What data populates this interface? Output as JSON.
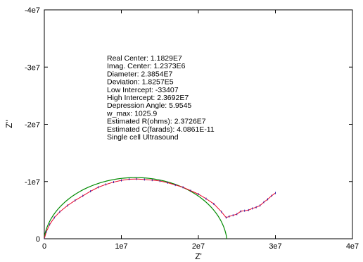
{
  "chart_data": {
    "type": "scatter",
    "title": "",
    "xlabel": "Z'",
    "ylabel": "Z''",
    "xlim": [
      0,
      40000000
    ],
    "ylim": [
      0,
      -40000000
    ],
    "y_inverted": true,
    "grid": false,
    "x_ticks": [
      {
        "value": 0,
        "label": "0"
      },
      {
        "value": 10000000,
        "label": "1e7"
      },
      {
        "value": 20000000,
        "label": "2e7"
      },
      {
        "value": 30000000,
        "label": "3e7"
      },
      {
        "value": 40000000,
        "label": "4e7"
      }
    ],
    "y_ticks": [
      {
        "value": 0,
        "label": "0"
      },
      {
        "value": -10000000,
        "label": "-1e7"
      },
      {
        "value": -20000000,
        "label": "-2e7"
      },
      {
        "value": -30000000,
        "label": "-3e7"
      },
      {
        "value": -40000000,
        "label": "-4e7"
      }
    ],
    "series": [
      {
        "kind": "data",
        "color": "#e8002a",
        "marker_color": "#2a1aa8",
        "x": [
          0,
          250000,
          700000,
          1300000,
          2000000,
          3000000,
          4000000,
          5000000,
          6000000,
          7000000,
          8000000,
          9000000,
          10000000,
          11000000,
          12000000,
          13000000,
          14000000,
          15000000,
          16000000,
          17000000,
          18000000,
          19000000,
          20000000,
          21000000,
          22000000,
          23000000,
          23600000,
          24000000,
          24500000,
          25000000,
          25500000,
          26000000,
          26500000,
          27000000,
          27500000,
          28000000,
          28500000,
          29000000,
          29500000,
          30000000
        ],
        "y": [
          0,
          -1200000,
          -2500000,
          -3700000,
          -4700000,
          -5800000,
          -6700000,
          -7500000,
          -8300000,
          -9000000,
          -9500000,
          -9900000,
          -10200000,
          -10400000,
          -10450000,
          -10350000,
          -10250000,
          -10100000,
          -9800000,
          -9400000,
          -9000000,
          -8400000,
          -7800000,
          -7000000,
          -6100000,
          -4700000,
          -3700000,
          -3900000,
          -4100000,
          -4300000,
          -4800000,
          -4900000,
          -5000000,
          -5300000,
          -5500000,
          -5800000,
          -6400000,
          -6900000,
          -7500000,
          -8000000
        ]
      },
      {
        "kind": "fit",
        "color": "#008a00",
        "center_real": 11829000,
        "center_imag": 1237300,
        "diameter": 23854000
      }
    ],
    "annotations": [
      "Real Center: 1.1829E7",
      "Imag. Center: 1.2373E6",
      "Diameter: 2.3854E7",
      "Deviation: 1.8257E5",
      "Low Intercept: -33407",
      "High Intercept: 2.3692E7",
      "Depression Angle: 5.9545",
      "w_max: 1025.9",
      "Estimated R(ohms): 2.3726E7",
      "Estimated C(farads): 4.0861E-11",
      "Single cell Ultrasound"
    ]
  }
}
